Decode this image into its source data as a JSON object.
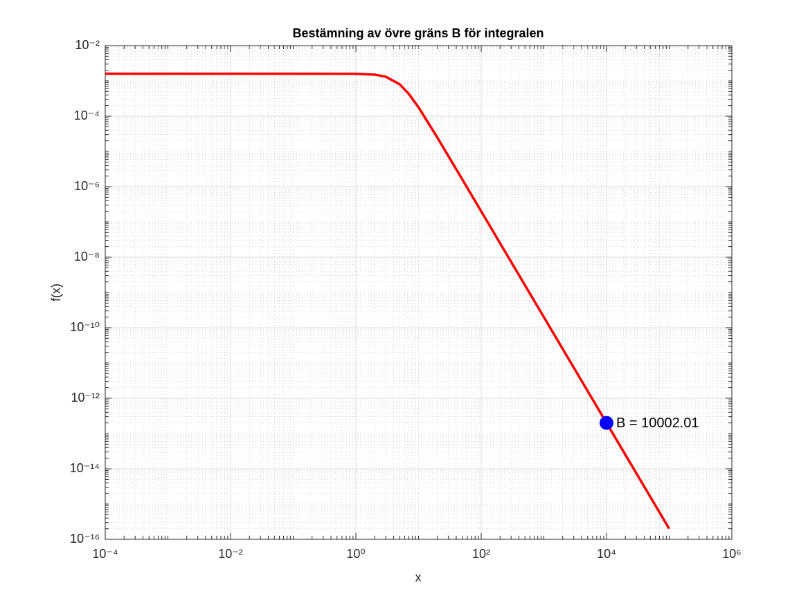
{
  "chart_data": {
    "type": "line",
    "title": "Bestämning av övre gräns B för integralen",
    "x_label": "x",
    "y_label": "f(x)",
    "x": [
      0.0001,
      0.001,
      0.01,
      0.1,
      1,
      2,
      3,
      5,
      7,
      10,
      20,
      50,
      100,
      1000,
      10000,
      100000
    ],
    "series": [
      {
        "name": "f(x)",
        "color": "#ff0000",
        "values": [
          0.0016,
          0.0016,
          0.0016,
          0.0016,
          0.001587,
          0.001504,
          0.001316,
          0.0008,
          0.000427,
          0.000178,
          2.46e-05,
          1.6e-06,
          2e-07,
          2e-10,
          2e-13,
          2e-16
        ]
      }
    ],
    "marker": {
      "x": 10002.01,
      "y": 2e-13,
      "color": "#0000ff",
      "label": "B = 10002.01"
    },
    "xscale": "log",
    "yscale": "log",
    "xlim": [
      0.0001,
      1000000
    ],
    "ylim": [
      1e-16,
      0.01
    ],
    "xticks": [
      {
        "value": 0.0001,
        "label": "10⁻⁴"
      },
      {
        "value": 0.01,
        "label": "10⁻²"
      },
      {
        "value": 1,
        "label": "10⁰"
      },
      {
        "value": 100,
        "label": "10²"
      },
      {
        "value": 10000,
        "label": "10⁴"
      },
      {
        "value": 1000000,
        "label": "10⁶"
      }
    ],
    "yticks": [
      {
        "value": 1e-16,
        "label": "10⁻¹⁶"
      },
      {
        "value": 1e-14,
        "label": "10⁻¹⁴"
      },
      {
        "value": 1e-12,
        "label": "10⁻¹²"
      },
      {
        "value": 1e-10,
        "label": "10⁻¹⁰"
      },
      {
        "value": 1e-08,
        "label": "10⁻⁸"
      },
      {
        "value": 1e-06,
        "label": "10⁻⁶"
      },
      {
        "value": 0.0001,
        "label": "10⁻⁴"
      },
      {
        "value": 0.01,
        "label": "10⁻²"
      }
    ],
    "grid": true,
    "minor_grid": true
  }
}
